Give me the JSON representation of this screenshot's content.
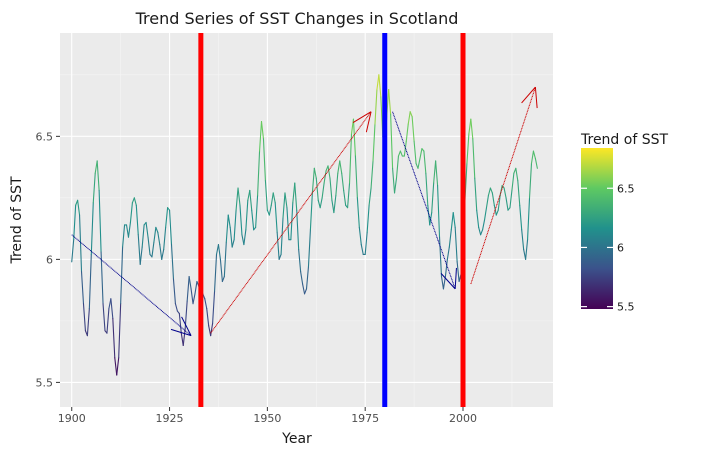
{
  "chart_data": {
    "type": "line",
    "title": "Trend Series of SST Changes in Scotland",
    "xlabel": "Year",
    "ylabel": "Trend of SST",
    "xlim": [
      1897,
      2023
    ],
    "ylim": [
      5.4,
      6.92
    ],
    "x_ticks": [
      1900,
      1925,
      1950,
      1975,
      2000
    ],
    "y_ticks": [
      5.5,
      6,
      6.5
    ],
    "y_tick_labels": [
      "5.5",
      "6",
      "6.5"
    ],
    "grid": true,
    "legend": {
      "title": "Trend of SST",
      "position": "right",
      "range": [
        5.48,
        6.84
      ],
      "ticks": [
        5.5,
        6,
        6.5
      ],
      "tick_labels": [
        "5.5",
        "6",
        "6.5"
      ],
      "colors": [
        "#440154",
        "#3b528b",
        "#21918c",
        "#5ec962",
        "#fde725"
      ]
    },
    "series": [
      {
        "x": [
          1900,
          1900.5,
          1901,
          1901.5,
          1902,
          1902.5,
          1903,
          1903.5,
          1904,
          1904.5,
          1905,
          1905.5,
          1906,
          1906.5,
          1907,
          1907.5,
          1908,
          1908.5,
          1909,
          1909.5,
          1910,
          1910.5,
          1911,
          1911.5,
          1912,
          1912.5,
          1913,
          1913.5,
          1914,
          1914.5,
          1915,
          1915.5,
          1916,
          1916.5,
          1917,
          1917.5,
          1918,
          1918.5,
          1919,
          1919.5,
          1920,
          1920.5,
          1921,
          1921.5,
          1922,
          1922.5,
          1923,
          1923.5,
          1924,
          1924.5,
          1925,
          1925.5,
          1926,
          1926.5,
          1927,
          1927.5,
          1928,
          1928.5,
          1929,
          1929.5,
          1930,
          1930.5,
          1931,
          1931.5,
          1932,
          1932.5,
          1933,
          1933.5,
          1934,
          1934.5,
          1935,
          1935.5,
          1936,
          1936.5,
          1937,
          1937.5,
          1938,
          1938.5,
          1939,
          1939.5,
          1940,
          1940.5,
          1941,
          1941.5,
          1942,
          1942.5,
          1943,
          1943.5,
          1944,
          1944.5,
          1945,
          1945.5,
          1946,
          1946.5,
          1947,
          1947.5,
          1948,
          1948.5,
          1949,
          1949.5,
          1950,
          1950.5,
          1951,
          1951.5,
          1952,
          1952.5,
          1953,
          1953.5,
          1954,
          1954.5,
          1955,
          1955.5,
          1956,
          1956.5,
          1957,
          1957.5,
          1958,
          1958.5,
          1959,
          1959.5,
          1960,
          1960.5,
          1961,
          1961.5,
          1962,
          1962.5,
          1963,
          1963.5,
          1964,
          1964.5,
          1965,
          1965.5,
          1966,
          1966.5,
          1967,
          1967.5,
          1968,
          1968.5,
          1969,
          1969.5,
          1970,
          1970.5,
          1971,
          1971.5,
          1972,
          1972.5,
          1973,
          1973.5,
          1974,
          1974.5,
          1975,
          1975.5,
          1976,
          1976.5,
          1977,
          1977.5,
          1978,
          1978.5,
          1979,
          1979.5,
          1980,
          1980.5,
          1981,
          1981.5,
          1982,
          1982.5,
          1983,
          1983.5,
          1984,
          1984.5,
          1985,
          1985.5,
          1986,
          1986.5,
          1987,
          1987.5,
          1988,
          1988.5,
          1989,
          1989.5,
          1990,
          1990.5,
          1991,
          1991.5,
          1992,
          1992.5,
          1993,
          1993.5,
          1994,
          1994.5,
          1995,
          1995.5,
          1996,
          1996.5,
          1997,
          1997.5,
          1998,
          1998.5,
          1999,
          1999.5,
          2000,
          2000.5,
          2001,
          2001.5,
          2002,
          2002.5,
          2003,
          2003.5,
          2004,
          2004.5,
          2005,
          2005.5,
          2006,
          2006.5,
          2007,
          2007.5,
          2008,
          2008.5,
          2009,
          2009.5,
          2010,
          2010.5,
          2011,
          2011.5,
          2012,
          2012.5,
          2013,
          2013.5,
          2014,
          2014.5,
          2015,
          2015.5,
          2016,
          2016.5,
          2017,
          2017.5,
          2018,
          2018.5,
          2019
        ],
        "y": [
          5.99,
          6.08,
          6.22,
          6.24,
          6.18,
          5.95,
          5.82,
          5.71,
          5.69,
          5.8,
          6.02,
          6.23,
          6.35,
          6.4,
          6.28,
          6.03,
          5.82,
          5.71,
          5.7,
          5.8,
          5.84,
          5.76,
          5.6,
          5.53,
          5.6,
          5.82,
          6.05,
          6.14,
          6.14,
          6.09,
          6.15,
          6.23,
          6.25,
          6.22,
          6.1,
          5.98,
          6.05,
          6.14,
          6.15,
          6.09,
          6.02,
          6.01,
          6.07,
          6.13,
          6.11,
          6.06,
          6.0,
          6.04,
          6.13,
          6.21,
          6.2,
          6.06,
          5.92,
          5.82,
          5.79,
          5.78,
          5.7,
          5.65,
          5.72,
          5.83,
          5.93,
          5.88,
          5.82,
          5.86,
          5.91,
          5.89,
          5.87,
          5.86,
          5.84,
          5.8,
          5.73,
          5.69,
          5.74,
          5.87,
          6.02,
          6.06,
          6.0,
          5.91,
          5.93,
          6.07,
          6.18,
          6.13,
          6.05,
          6.08,
          6.2,
          6.29,
          6.22,
          6.1,
          6.06,
          6.12,
          6.24,
          6.28,
          6.2,
          6.12,
          6.13,
          6.26,
          6.44,
          6.56,
          6.49,
          6.32,
          6.2,
          6.18,
          6.22,
          6.27,
          6.23,
          6.11,
          6.0,
          6.02,
          6.17,
          6.27,
          6.21,
          6.08,
          6.08,
          6.23,
          6.31,
          6.2,
          6.04,
          5.95,
          5.9,
          5.86,
          5.88,
          5.97,
          6.12,
          6.27,
          6.37,
          6.33,
          6.24,
          6.21,
          6.25,
          6.31,
          6.36,
          6.38,
          6.33,
          6.24,
          6.19,
          6.26,
          6.35,
          6.4,
          6.35,
          6.28,
          6.22,
          6.21,
          6.31,
          6.51,
          6.57,
          6.42,
          6.25,
          6.13,
          6.06,
          6.02,
          6.02,
          6.11,
          6.22,
          6.29,
          6.4,
          6.55,
          6.69,
          6.75,
          6.66,
          6.5,
          6.44,
          6.58,
          6.69,
          6.59,
          6.37,
          6.27,
          6.33,
          6.42,
          6.44,
          6.42,
          6.42,
          6.48,
          6.55,
          6.6,
          6.58,
          6.48,
          6.39,
          6.37,
          6.41,
          6.45,
          6.44,
          6.35,
          6.22,
          6.14,
          6.19,
          6.31,
          6.4,
          6.3,
          6.09,
          5.93,
          5.88,
          5.93,
          6.0,
          6.05,
          6.12,
          6.19,
          6.13,
          5.99,
          5.91,
          5.94,
          6.07,
          6.24,
          6.39,
          6.51,
          6.57,
          6.49,
          6.33,
          6.2,
          6.13,
          6.1,
          6.12,
          6.16,
          6.21,
          6.26,
          6.29,
          6.27,
          6.22,
          6.18,
          6.2,
          6.26,
          6.3,
          6.29,
          6.25,
          6.2,
          6.21,
          6.28,
          6.35,
          6.37,
          6.32,
          6.22,
          6.12,
          6.04,
          6.0,
          6.08,
          6.25,
          6.39,
          6.44,
          6.41,
          6.37
        ]
      }
    ],
    "vertical_lines": [
      {
        "x": 1933,
        "color": "#ff0000"
      },
      {
        "x": 1980,
        "color": "#0000ff"
      },
      {
        "x": 2000,
        "color": "#ff0000"
      }
    ],
    "arrows": [
      {
        "from": [
          1900,
          6.1
        ],
        "to": [
          1930.5,
          5.69
        ],
        "color": "#00008b"
      },
      {
        "from": [
          1935.5,
          5.7
        ],
        "to": [
          1976.5,
          6.6
        ],
        "color": "#cc0000"
      },
      {
        "from": [
          1982,
          6.6
        ],
        "to": [
          1998,
          5.88
        ],
        "color": "#00008b"
      },
      {
        "from": [
          2002,
          5.9
        ],
        "to": [
          2018.5,
          6.7
        ],
        "color": "#cc0000"
      }
    ]
  }
}
